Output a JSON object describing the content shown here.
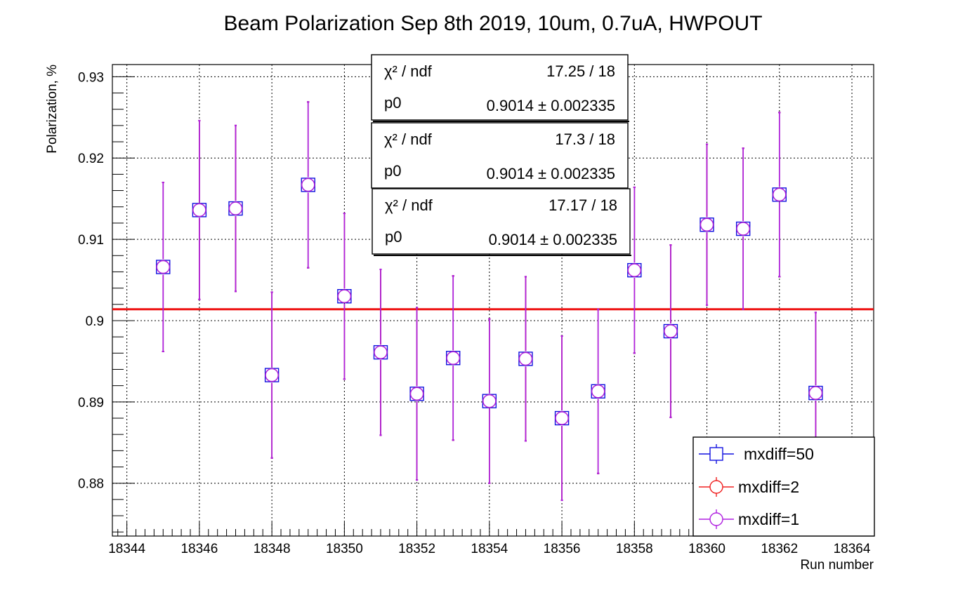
{
  "chart_data": {
    "type": "scatter",
    "title": "Beam Polarization Sep 8th 2019, 10um, 0.7uA, HWPOUT",
    "xlabel": "Run number",
    "ylabel": "Polarization, %",
    "xlim": [
      18343.6,
      18364.6
    ],
    "ylim": [
      0.8735,
      0.9315
    ],
    "xticks": [
      18344,
      18346,
      18348,
      18350,
      18352,
      18354,
      18356,
      18358,
      18360,
      18362,
      18364
    ],
    "xtick_labels": [
      "18344",
      "18346",
      "18348",
      "18350",
      "18352",
      "18354",
      "18356",
      "18358",
      "18360",
      "18362",
      "18364"
    ],
    "yticks": [
      0.88,
      0.89,
      0.9,
      0.91,
      0.92,
      0.93
    ],
    "ytick_labels": [
      "0.88",
      "0.89",
      "0.9",
      "0.91",
      "0.92",
      "0.93"
    ],
    "grid": true,
    "x": [
      18345,
      18346,
      18347,
      18348,
      18349,
      18350,
      18351,
      18352,
      18353,
      18354,
      18355,
      18356,
      18357,
      18358,
      18359,
      18360,
      18361,
      18362,
      18363
    ],
    "series": [
      {
        "name": "mxdiff=50",
        "marker": "square",
        "color": "#1010e0",
        "y": [
          0.9066,
          0.9136,
          0.9138,
          0.8933,
          0.9167,
          0.903,
          0.8961,
          0.891,
          0.8954,
          0.8901,
          0.8953,
          0.888,
          0.8913,
          0.9062,
          0.8987,
          0.9118,
          0.9113,
          0.9155,
          0.8911
        ],
        "err": [
          0.0104,
          0.011,
          0.0102,
          0.0102,
          0.0102,
          0.0102,
          0.0102,
          0.0106,
          0.0101,
          0.0101,
          0.0101,
          0.0101,
          0.0101,
          0.0102,
          0.0106,
          0.0099,
          0.0099,
          0.0101,
          0.0099
        ]
      },
      {
        "name": "mxdiff=2",
        "marker": "circle",
        "color": "#f02020",
        "y": [
          0.9066,
          0.9136,
          0.9138,
          0.8933,
          0.9167,
          0.903,
          0.8961,
          0.891,
          0.8954,
          0.8901,
          0.8953,
          0.888,
          0.8913,
          0.9062,
          0.8987,
          0.9118,
          0.9113,
          0.9155,
          0.8911
        ],
        "err": [
          0.0104,
          0.011,
          0.0102,
          0.0102,
          0.0102,
          0.0102,
          0.0102,
          0.0106,
          0.0101,
          0.0101,
          0.0101,
          0.0101,
          0.0101,
          0.0102,
          0.0106,
          0.0099,
          0.0099,
          0.0101,
          0.0099
        ]
      },
      {
        "name": "mxdiff=1",
        "marker": "circle",
        "color": "#b020e0",
        "y": [
          0.9066,
          0.9136,
          0.9138,
          0.8933,
          0.9167,
          0.903,
          0.8961,
          0.891,
          0.8954,
          0.8901,
          0.8953,
          0.888,
          0.8913,
          0.9062,
          0.8987,
          0.9118,
          0.9113,
          0.9155,
          0.8911
        ],
        "err": [
          0.0104,
          0.011,
          0.0102,
          0.0102,
          0.0102,
          0.0102,
          0.0102,
          0.0106,
          0.0101,
          0.0101,
          0.0101,
          0.0101,
          0.0101,
          0.0102,
          0.0106,
          0.0099,
          0.0099,
          0.0101,
          0.0099
        ]
      }
    ],
    "fit": {
      "color": "#ee1111",
      "p0": 0.9014,
      "x_range": [
        18343.6,
        18364.6
      ]
    },
    "stat_boxes": [
      {
        "chi2_label": "χ² / ndf",
        "chi2_value": "17.25 / 18",
        "p0_label": "p0",
        "p0_value": "0.9014 ± 0.002335"
      },
      {
        "chi2_label": "χ² / ndf",
        "chi2_value": "17.3 / 18",
        "p0_label": "p0",
        "p0_value": "0.9014 ± 0.002335"
      },
      {
        "chi2_label": "χ² / ndf",
        "chi2_value": "17.17 / 18",
        "p0_label": "p0",
        "p0_value": "0.9014 ± 0.002335"
      }
    ],
    "legend": {
      "placement": "bottom-right",
      "entries": [
        "mxdiff=50",
        "mxdiff=2",
        "mxdiff=1"
      ]
    }
  }
}
